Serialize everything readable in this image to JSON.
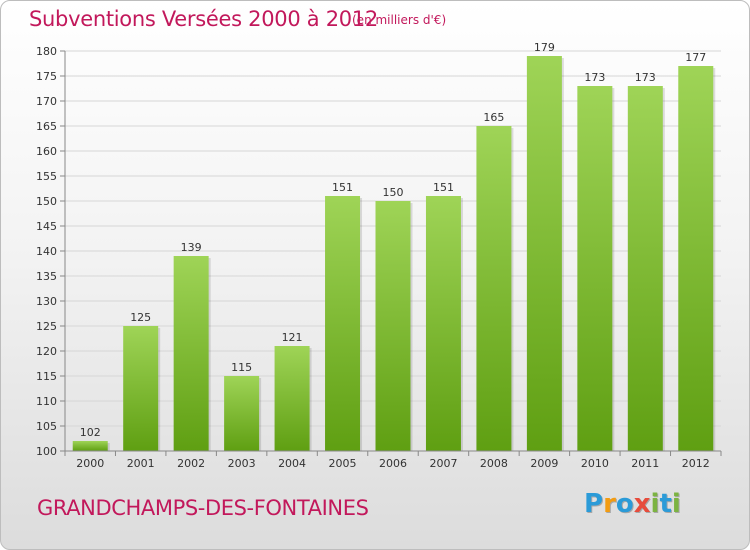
{
  "title": "Subventions Versées 2000 à 2012",
  "unit": "(en milliers d'€)",
  "commune": "GRANDCHAMPS-DES-FONTAINES",
  "logo": {
    "text": "Proxiti",
    "letters": [
      {
        "ch": "P",
        "color": "#2b9bd8"
      },
      {
        "ch": "r",
        "color": "#f39c12"
      },
      {
        "ch": "o",
        "color": "#2b9bd8"
      },
      {
        "ch": "x",
        "color": "#e74c3c"
      },
      {
        "ch": "i",
        "color": "#7cb342"
      },
      {
        "ch": "t",
        "color": "#2b9bd8"
      },
      {
        "ch": "i",
        "color": "#7cb342"
      }
    ]
  },
  "colors": {
    "bar_top": "#9fd457",
    "bar_bottom": "#5f9f12",
    "title": "#c2185b"
  },
  "chart_data": {
    "type": "bar",
    "categories": [
      "2000",
      "2001",
      "2002",
      "2003",
      "2004",
      "2005",
      "2006",
      "2007",
      "2008",
      "2009",
      "2010",
      "2011",
      "2012"
    ],
    "values": [
      102,
      125,
      139,
      115,
      121,
      151,
      150,
      151,
      165,
      179,
      173,
      173,
      177
    ],
    "data_labels": [
      "102",
      "125",
      "139",
      "115",
      "121",
      "151",
      "150",
      "151",
      "165",
      "179",
      "173",
      "173",
      "177"
    ],
    "ylim": [
      100,
      180
    ],
    "yticks": [
      100,
      105,
      110,
      115,
      120,
      125,
      130,
      135,
      140,
      145,
      150,
      155,
      160,
      165,
      170,
      175,
      180
    ],
    "grid": true,
    "title": "Subventions Versées 2000 à 2012",
    "xlabel": "",
    "ylabel": ""
  }
}
